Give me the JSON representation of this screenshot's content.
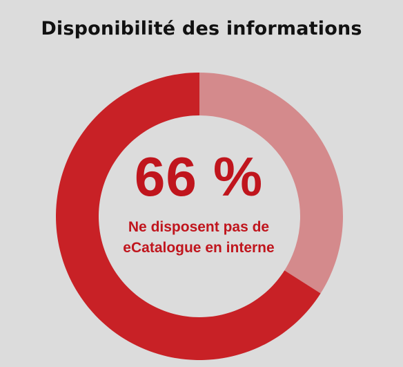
{
  "title": "Disponibilité des informations",
  "center": {
    "value_label": "66 %",
    "caption": "Ne disposent pas de eCatalogue en interne"
  },
  "colors": {
    "background": "#dcdcdc",
    "primary": "#c82126",
    "secondary": "#d48a8c",
    "text_accent": "#c0151d"
  },
  "chart_data": {
    "type": "pie",
    "style": "donut",
    "title": "Disponibilité des informations",
    "slices": [
      {
        "label": "Ne disposent pas de eCatalogue en interne",
        "value": 66,
        "color": "#c82126"
      },
      {
        "label": "",
        "value": 34,
        "color": "#d48a8c"
      }
    ],
    "start": "top",
    "direction": "counter-clockwise for primary slice",
    "legend": "none"
  }
}
